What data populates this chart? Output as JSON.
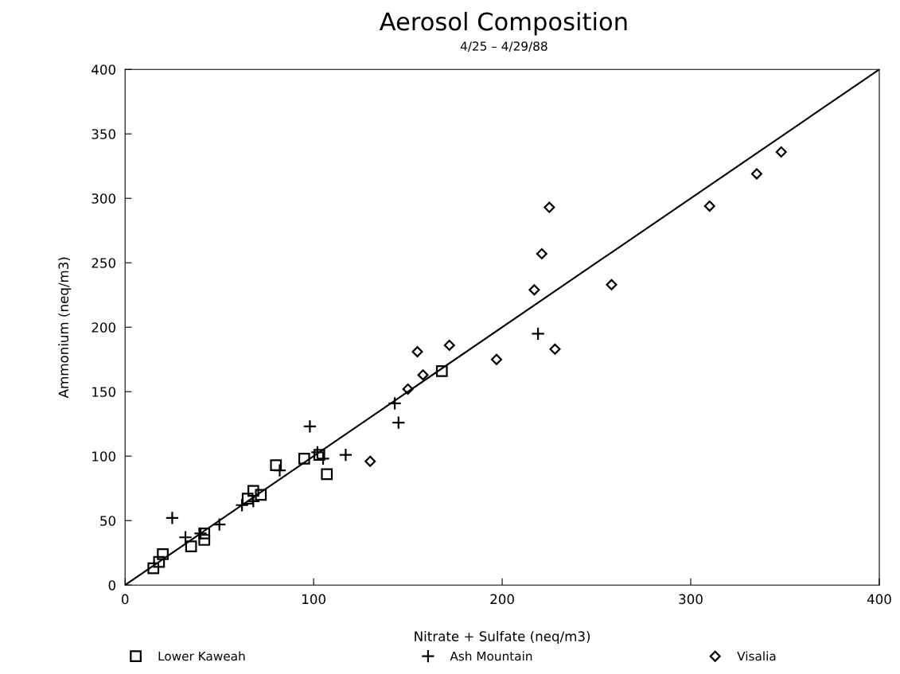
{
  "chart_data": {
    "type": "scatter",
    "title": "Aerosol Composition",
    "subtitle": "4/25 – 4/29/88",
    "xlabel": "Nitrate + Sulfate (neq/m3)",
    "ylabel": "Ammonium (neq/m3)",
    "xlim": [
      0,
      400
    ],
    "ylim": [
      0,
      400
    ],
    "xticks": [
      0,
      100,
      200,
      300,
      400
    ],
    "yticks": [
      0,
      50,
      100,
      150,
      200,
      250,
      300,
      350,
      400
    ],
    "grid": false,
    "legend": "bottom",
    "series": [
      {
        "name": "Lower Kaweah",
        "color": "#000000",
        "marker": "square",
        "x": [
          15,
          18,
          20,
          35,
          42,
          42,
          65,
          68,
          72,
          80,
          95,
          103,
          107,
          168
        ],
        "values": [
          13,
          18,
          24,
          30,
          35,
          40,
          67,
          73,
          70,
          93,
          98,
          101,
          86,
          166
        ]
      },
      {
        "name": "Ash Mountain",
        "color": "#000000",
        "marker": "cross",
        "x": [
          25,
          32,
          40,
          50,
          62,
          68,
          82,
          98,
          102,
          105,
          117,
          143,
          145,
          219
        ],
        "values": [
          52,
          37,
          40,
          47,
          62,
          65,
          89,
          123,
          103,
          98,
          101,
          141,
          126,
          195
        ]
      },
      {
        "name": "Visalia",
        "color": "#000000",
        "marker": "diamond",
        "x": [
          130,
          150,
          155,
          158,
          172,
          197,
          217,
          221,
          225,
          228,
          258,
          310,
          335,
          348
        ],
        "values": [
          96,
          152,
          181,
          163,
          186,
          175,
          229,
          257,
          293,
          183,
          233,
          294,
          319,
          336
        ]
      },
      {
        "type": "line",
        "color": "#000000",
        "marker": "none",
        "x": [
          0,
          400
        ],
        "values": [
          0,
          400
        ]
      }
    ]
  }
}
